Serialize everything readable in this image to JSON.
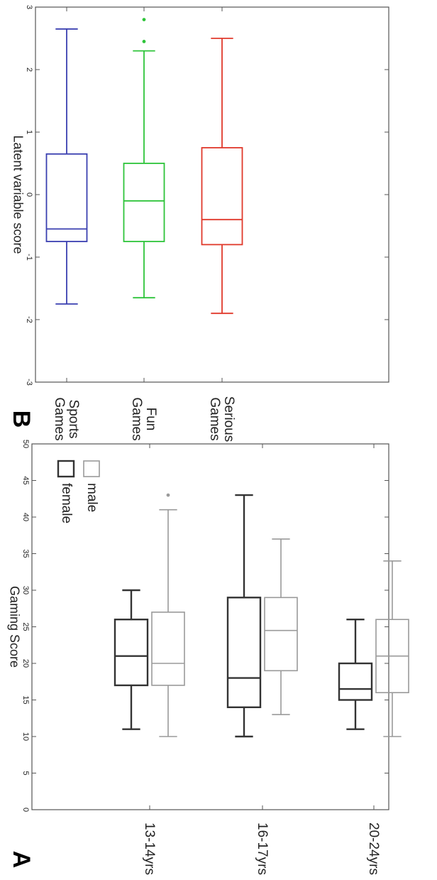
{
  "chart_data": [
    {
      "panel_label": "A",
      "type": "boxplot",
      "ylabel": "Gaming Score",
      "ylim": [
        0,
        50
      ],
      "yticks": [
        0,
        5,
        10,
        15,
        20,
        25,
        30,
        35,
        40,
        45,
        50
      ],
      "categories": [
        "13-14yrs",
        "16-17yrs",
        "20-24yrs"
      ],
      "legend": {
        "position": "top-right",
        "entries": [
          "female",
          "male"
        ]
      },
      "colors": {
        "female": "#333333",
        "male": "#9a9a9a"
      },
      "series": [
        {
          "name": "female",
          "boxes": [
            {
              "category": "13-14yrs",
              "min": 11,
              "q1": 17,
              "median": 21,
              "q3": 26,
              "max": 30,
              "outliers": []
            },
            {
              "category": "16-17yrs",
              "min": 10,
              "q1": 14,
              "median": 18,
              "q3": 29,
              "max": 43,
              "outliers": []
            },
            {
              "category": "20-24yrs",
              "min": 11,
              "q1": 15,
              "median": 16.5,
              "q3": 20,
              "max": 26,
              "outliers": []
            }
          ]
        },
        {
          "name": "male",
          "boxes": [
            {
              "category": "13-14yrs",
              "min": 10,
              "q1": 17,
              "median": 20,
              "q3": 27,
              "max": 41,
              "outliers": [
                43
              ]
            },
            {
              "category": "16-17yrs",
              "min": 13,
              "q1": 19,
              "median": 24.5,
              "q3": 29,
              "max": 37,
              "outliers": []
            },
            {
              "category": "20-24yrs",
              "min": 10,
              "q1": 16,
              "median": 21,
              "q3": 26,
              "max": 34,
              "outliers": []
            }
          ]
        }
      ]
    },
    {
      "panel_label": "B",
      "type": "boxplot",
      "ylabel": "Latent variable score",
      "ylim": [
        -3,
        3
      ],
      "yticks": [
        -3,
        -2,
        -1,
        0,
        1,
        2,
        3
      ],
      "categories": [
        "Serious Games",
        "Fun Games",
        "Sports Games"
      ],
      "boxes": [
        {
          "category": "Serious Games",
          "color": "#e0392b",
          "min": -1.9,
          "q1": -0.8,
          "median": -0.4,
          "q3": 0.75,
          "max": 2.5,
          "outliers": []
        },
        {
          "category": "Fun Games",
          "color": "#2ec43a",
          "min": -1.65,
          "q1": -0.75,
          "median": -0.1,
          "q3": 0.5,
          "max": 2.3,
          "outliers": [
            2.45,
            2.8
          ]
        },
        {
          "category": "Sports Games",
          "color": "#3a3fb0",
          "min": -1.75,
          "q1": -0.75,
          "median": -0.55,
          "q3": 0.65,
          "max": 2.65,
          "outliers": []
        }
      ]
    }
  ]
}
